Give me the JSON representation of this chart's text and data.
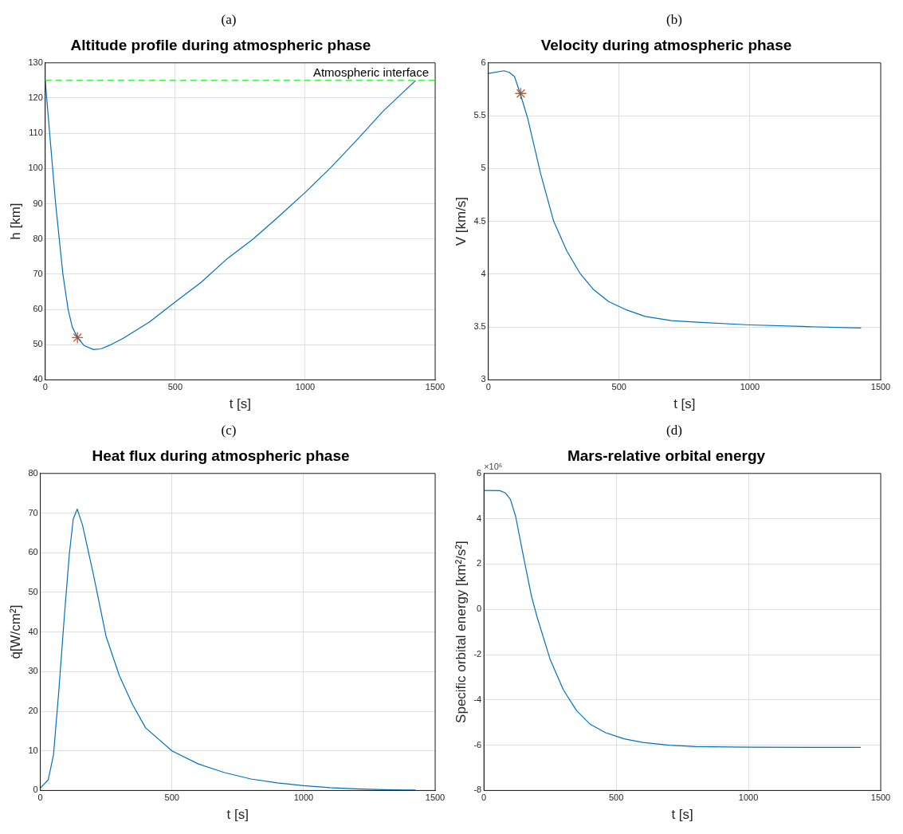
{
  "chart_data": [
    {
      "type": "line",
      "subtitle": "(a)",
      "title": "Altitude profile during atmospheric phase",
      "xlabel": "t [s]",
      "ylabel": "h [km]",
      "xlim": [
        0,
        1500
      ],
      "xticks": [
        0,
        500,
        1000,
        1500
      ],
      "ylim": [
        40,
        130
      ],
      "yticks": [
        40,
        50,
        60,
        70,
        80,
        90,
        100,
        110,
        120,
        130
      ],
      "grid": true,
      "series": [
        {
          "color": "#0072bd",
          "x": [
            0,
            17,
            40,
            54,
            68,
            88,
            104,
            124,
            150,
            185,
            215,
            250,
            300,
            400,
            500,
            600,
            700,
            800,
            900,
            1000,
            1100,
            1200,
            1300,
            1425
          ],
          "values": [
            125,
            110,
            90,
            80,
            70,
            60,
            55,
            52,
            49.7,
            48.6,
            48.8,
            49.9,
            51.8,
            56.4,
            62.1,
            67.7,
            74.4,
            80,
            86.5,
            93.2,
            100.4,
            108.2,
            116.3,
            125
          ]
        },
        {
          "type": "scatter",
          "color": "#d95319",
          "marker": "cross",
          "x": [
            124
          ],
          "values": [
            52
          ]
        }
      ],
      "ref_lines": [
        {
          "axis": "y",
          "value": 125,
          "label": "Atmospheric interface",
          "color": "#00ff00",
          "line_style": "dashed"
        }
      ]
    },
    {
      "type": "line",
      "subtitle": "(b)",
      "title": "Velocity during atmospheric phase",
      "xlabel": "t [s]",
      "ylabel": "V [km/s]",
      "xlim": [
        0,
        1500
      ],
      "xticks": [
        0,
        500,
        1000,
        1500
      ],
      "ylim": [
        3,
        6
      ],
      "yticks": [
        3,
        3.5,
        4,
        4.5,
        5,
        5.5,
        6
      ],
      "grid": true,
      "series": [
        {
          "color": "#0072bd",
          "x": [
            0,
            60,
            80,
            100,
            122,
            150,
            200,
            250,
            300,
            350,
            400,
            460,
            530,
            600,
            700,
            800,
            1000,
            1200,
            1425
          ],
          "values": [
            5.9,
            5.925,
            5.91,
            5.87,
            5.71,
            5.48,
            4.95,
            4.5,
            4.22,
            4.01,
            3.86,
            3.74,
            3.66,
            3.6,
            3.56,
            3.545,
            3.52,
            3.505,
            3.49
          ]
        },
        {
          "type": "scatter",
          "color": "#d95319",
          "marker": "cross",
          "x": [
            124
          ],
          "values": [
            5.71
          ]
        }
      ]
    },
    {
      "type": "line",
      "subtitle": "(c)",
      "title": "Heat flux during atmospheric phase",
      "xlabel": "t [s]",
      "ylabel": "q̇[W/cm²]",
      "xlim": [
        0,
        1500
      ],
      "xticks": [
        0,
        500,
        1000,
        1500
      ],
      "ylim": [
        0,
        80
      ],
      "yticks": [
        0,
        10,
        20,
        30,
        40,
        50,
        60,
        70,
        80
      ],
      "grid": true,
      "series": [
        {
          "color": "#0072bd",
          "x": [
            0,
            30,
            50,
            70,
            90,
            110,
            125,
            140,
            160,
            180,
            200,
            250,
            300,
            350,
            400,
            500,
            600,
            700,
            800,
            900,
            1000,
            1100,
            1200,
            1300,
            1425
          ],
          "values": [
            0.6,
            2.7,
            9,
            25,
            43,
            59.6,
            68.5,
            71,
            67,
            61,
            55,
            38.8,
            29,
            21.7,
            15.8,
            10,
            6.7,
            4.5,
            2.9,
            1.9,
            1.2,
            0.7,
            0.4,
            0.2,
            0.1
          ]
        }
      ]
    },
    {
      "type": "line",
      "subtitle": "(d)",
      "title": "Mars-relative orbital energy",
      "xlabel": "t [s]",
      "ylabel": "Specific orbital energy [km²/s²]",
      "xlim": [
        0,
        1500
      ],
      "xticks": [
        0,
        500,
        1000,
        1500
      ],
      "ylim": [
        -8,
        6
      ],
      "yticks": [
        -8,
        -6,
        -4,
        -2,
        0,
        2,
        4,
        6
      ],
      "grid": true,
      "annotations": [
        "×10⁶"
      ],
      "series": [
        {
          "color": "#0072bd",
          "x": [
            0,
            60,
            80,
            100,
            120,
            150,
            180,
            200,
            250,
            300,
            350,
            400,
            460,
            530,
            600,
            700,
            800,
            1000,
            1425
          ],
          "values": [
            5.25,
            5.24,
            5.15,
            4.86,
            4.1,
            2.3,
            0.57,
            -0.3,
            -2.2,
            -3.55,
            -4.47,
            -5.06,
            -5.45,
            -5.72,
            -5.88,
            -6,
            -6.06,
            -6.09,
            -6.1
          ]
        }
      ]
    }
  ]
}
